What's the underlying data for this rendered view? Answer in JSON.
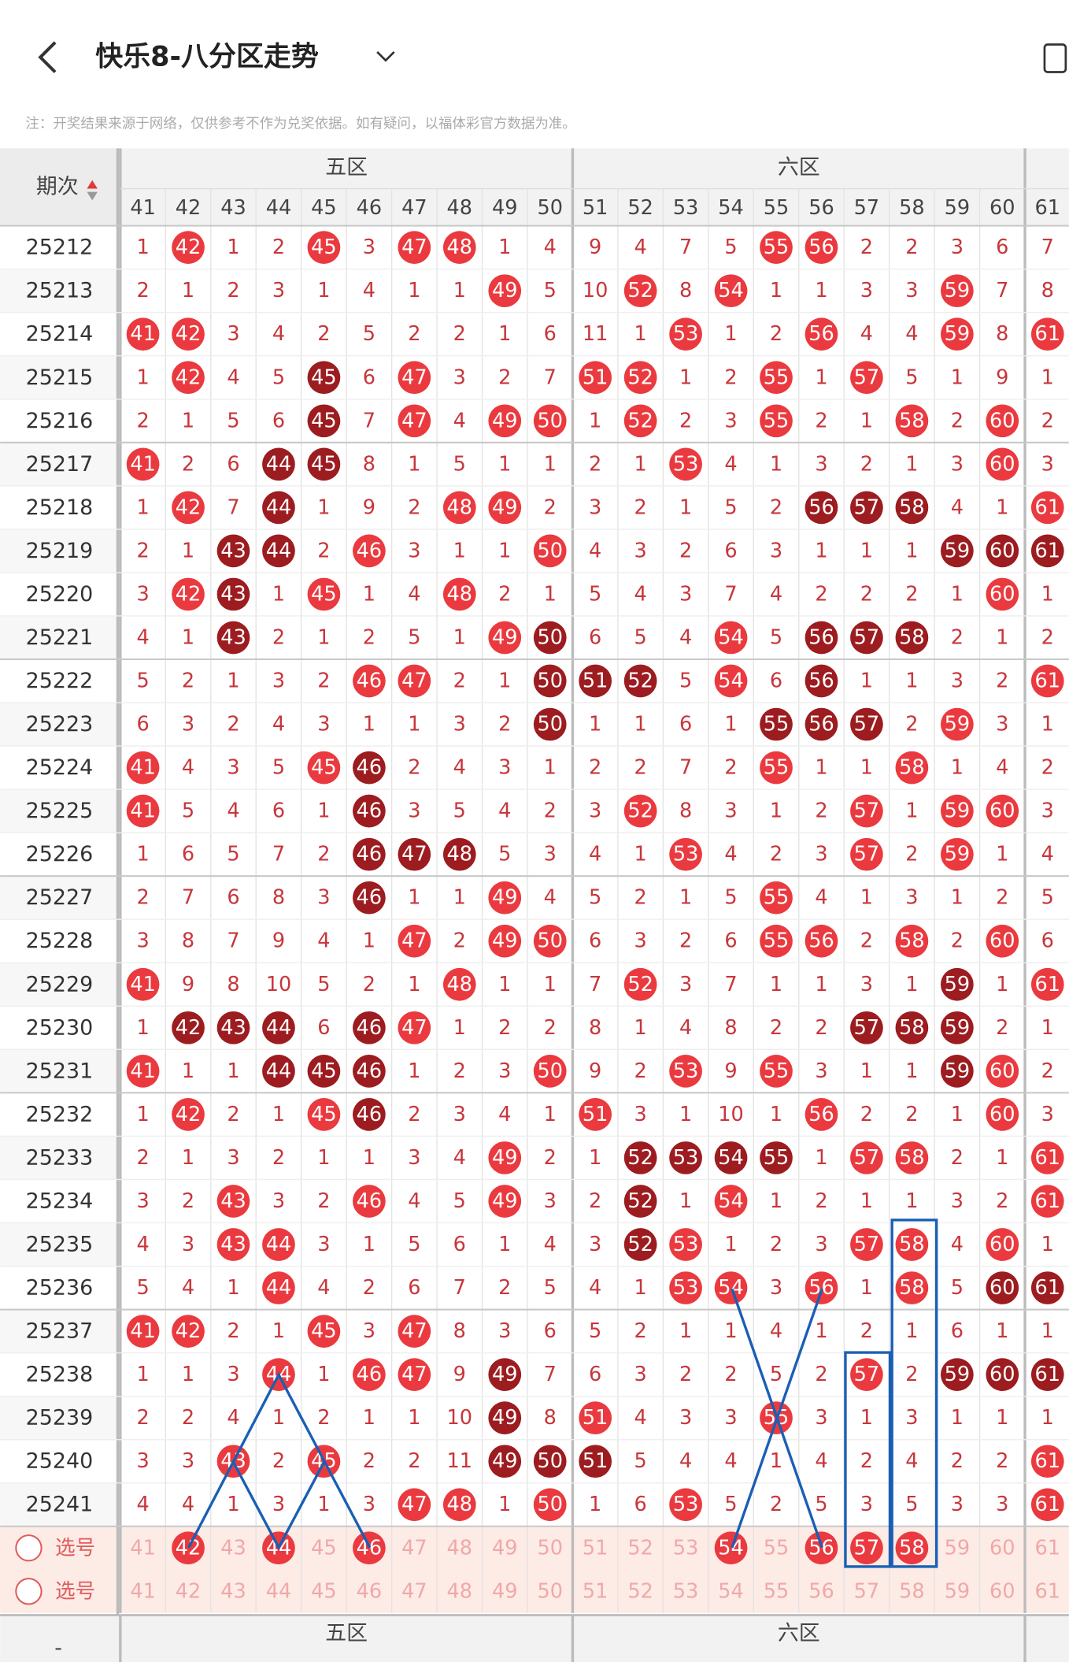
{
  "header": {
    "title": "快乐8-八分区走势",
    "note": "注：开奖结果来源于网络，仅供参考不作为兑奖依据。如有疑问，以福体彩官方数据为准。"
  },
  "table": {
    "issue_header": "期次",
    "zones": [
      "五区",
      "六区"
    ],
    "columns": [
      41,
      42,
      43,
      44,
      45,
      46,
      47,
      48,
      49,
      50,
      51,
      52,
      53,
      54,
      55,
      56,
      57,
      58,
      59,
      60,
      61
    ],
    "rows": [
      {
        "issue": "25212",
        "cells": [
          1,
          42,
          1,
          2,
          45,
          3,
          47,
          48,
          1,
          4,
          9,
          4,
          7,
          5,
          55,
          56,
          2,
          2,
          3,
          6,
          7
        ],
        "style": ".r..r.rr......rr....."
      },
      {
        "issue": "25213",
        "cells": [
          2,
          1,
          2,
          3,
          1,
          4,
          1,
          1,
          49,
          5,
          10,
          52,
          8,
          54,
          1,
          1,
          3,
          3,
          59,
          7,
          8
        ],
        "style": "........r..r.r....r.."
      },
      {
        "issue": "25214",
        "cells": [
          41,
          42,
          3,
          4,
          2,
          5,
          2,
          2,
          1,
          6,
          11,
          1,
          53,
          1,
          2,
          56,
          4,
          4,
          59,
          8,
          61
        ],
        "style": "rr..........r..r..r.r"
      },
      {
        "issue": "25215",
        "cells": [
          1,
          42,
          4,
          5,
          45,
          6,
          47,
          3,
          2,
          7,
          51,
          52,
          1,
          2,
          55,
          1,
          57,
          5,
          1,
          9,
          1
        ],
        "style": ".r..d.r...rr..r.r...."
      },
      {
        "issue": "25216",
        "cells": [
          2,
          1,
          5,
          6,
          45,
          7,
          47,
          4,
          49,
          50,
          1,
          52,
          2,
          3,
          55,
          2,
          1,
          58,
          2,
          60,
          2
        ],
        "style": "....d.r.rr.r..r..r.r."
      },
      {
        "issue": "25217",
        "cells": [
          41,
          2,
          6,
          44,
          45,
          8,
          1,
          5,
          1,
          1,
          2,
          1,
          53,
          4,
          1,
          3,
          2,
          1,
          3,
          60,
          3
        ],
        "style": "r..dd.......r......r."
      },
      {
        "issue": "25218",
        "cells": [
          1,
          42,
          7,
          44,
          1,
          9,
          2,
          48,
          49,
          2,
          3,
          2,
          1,
          5,
          2,
          56,
          57,
          58,
          4,
          1,
          61
        ],
        "style": ".r.d...rr......ddd..r"
      },
      {
        "issue": "25219",
        "cells": [
          2,
          1,
          43,
          44,
          2,
          46,
          3,
          1,
          1,
          50,
          4,
          3,
          2,
          6,
          3,
          1,
          1,
          1,
          59,
          60,
          61
        ],
        "style": "..dd.r...r........ddd"
      },
      {
        "issue": "25220",
        "cells": [
          3,
          42,
          43,
          1,
          45,
          1,
          4,
          48,
          2,
          1,
          5,
          4,
          3,
          7,
          4,
          2,
          2,
          2,
          1,
          60,
          1
        ],
        "style": ".rd.r..r...........r."
      },
      {
        "issue": "25221",
        "cells": [
          4,
          1,
          43,
          2,
          1,
          2,
          5,
          1,
          49,
          50,
          6,
          5,
          4,
          54,
          5,
          56,
          57,
          58,
          2,
          1,
          2
        ],
        "style": "..d.....rd...r.ddd..."
      },
      {
        "issue": "25222",
        "cells": [
          5,
          2,
          1,
          3,
          2,
          46,
          47,
          2,
          1,
          50,
          51,
          52,
          5,
          54,
          6,
          56,
          1,
          1,
          3,
          2,
          61
        ],
        "style": ".....rr..ddd.r.d....r"
      },
      {
        "issue": "25223",
        "cells": [
          6,
          3,
          2,
          4,
          3,
          1,
          1,
          3,
          2,
          50,
          1,
          1,
          6,
          1,
          55,
          56,
          57,
          2,
          59,
          3,
          1
        ],
        "style": ".........d....ddd.r.."
      },
      {
        "issue": "25224",
        "cells": [
          41,
          4,
          3,
          5,
          45,
          46,
          2,
          4,
          3,
          1,
          2,
          2,
          7,
          2,
          55,
          1,
          1,
          58,
          1,
          4,
          2
        ],
        "style": "r...rd........r..r..."
      },
      {
        "issue": "25225",
        "cells": [
          41,
          5,
          4,
          6,
          1,
          46,
          3,
          5,
          4,
          2,
          3,
          52,
          8,
          3,
          1,
          2,
          57,
          1,
          59,
          60,
          3
        ],
        "style": "r....d.....r....r.rr."
      },
      {
        "issue": "25226",
        "cells": [
          1,
          6,
          5,
          7,
          2,
          46,
          47,
          48,
          5,
          3,
          4,
          1,
          53,
          4,
          2,
          3,
          57,
          2,
          59,
          1,
          4
        ],
        "style": ".....ddd....r...r.r.."
      },
      {
        "issue": "25227",
        "cells": [
          2,
          7,
          6,
          8,
          3,
          46,
          1,
          1,
          49,
          4,
          5,
          2,
          1,
          5,
          55,
          4,
          1,
          3,
          1,
          2,
          5
        ],
        "style": ".....d..r.....r......"
      },
      {
        "issue": "25228",
        "cells": [
          3,
          8,
          7,
          9,
          4,
          1,
          47,
          2,
          49,
          50,
          6,
          3,
          2,
          6,
          55,
          56,
          2,
          58,
          2,
          60,
          6
        ],
        "style": "......r.rr....rr.r.r."
      },
      {
        "issue": "25229",
        "cells": [
          41,
          9,
          8,
          10,
          5,
          2,
          1,
          48,
          1,
          1,
          7,
          52,
          3,
          7,
          1,
          1,
          3,
          1,
          59,
          1,
          61
        ],
        "style": "r......r...r......d.r"
      },
      {
        "issue": "25230",
        "cells": [
          1,
          42,
          43,
          44,
          6,
          46,
          47,
          1,
          2,
          2,
          8,
          1,
          4,
          8,
          2,
          2,
          57,
          58,
          59,
          2,
          1
        ],
        "style": ".ddd.dr.........ddd.."
      },
      {
        "issue": "25231",
        "cells": [
          41,
          1,
          1,
          44,
          45,
          46,
          1,
          2,
          3,
          50,
          9,
          2,
          53,
          9,
          55,
          3,
          1,
          1,
          59,
          60,
          2
        ],
        "style": "r..ddd...r..r.r...dr."
      },
      {
        "issue": "25232",
        "cells": [
          1,
          42,
          2,
          1,
          45,
          46,
          2,
          3,
          4,
          1,
          51,
          3,
          1,
          10,
          1,
          56,
          2,
          2,
          1,
          60,
          3
        ],
        "style": ".r..rd....r....r...r."
      },
      {
        "issue": "25233",
        "cells": [
          2,
          1,
          3,
          2,
          1,
          1,
          3,
          4,
          49,
          2,
          1,
          52,
          53,
          54,
          55,
          1,
          57,
          58,
          2,
          1,
          61
        ],
        "style": "........r..dddd.rr..r"
      },
      {
        "issue": "25234",
        "cells": [
          3,
          2,
          43,
          3,
          2,
          46,
          4,
          5,
          49,
          3,
          2,
          52,
          1,
          54,
          1,
          2,
          1,
          1,
          3,
          2,
          61
        ],
        "style": "..r..r..r..d.r......r"
      },
      {
        "issue": "25235",
        "cells": [
          4,
          3,
          43,
          44,
          3,
          1,
          5,
          6,
          1,
          4,
          3,
          52,
          53,
          1,
          2,
          3,
          57,
          58,
          4,
          60,
          1
        ],
        "style": "..rr.......dr...rr.r."
      },
      {
        "issue": "25236",
        "cells": [
          5,
          4,
          1,
          44,
          4,
          2,
          6,
          7,
          2,
          5,
          4,
          1,
          53,
          54,
          3,
          56,
          1,
          58,
          5,
          60,
          61
        ],
        "style": "...r........rr.r.r.dd"
      },
      {
        "issue": "25237",
        "cells": [
          41,
          42,
          2,
          1,
          45,
          3,
          47,
          8,
          3,
          6,
          5,
          2,
          1,
          1,
          4,
          1,
          2,
          1,
          6,
          1,
          1
        ],
        "style": "rr..r.r.............."
      },
      {
        "issue": "25238",
        "cells": [
          1,
          1,
          3,
          44,
          1,
          46,
          47,
          9,
          49,
          7,
          6,
          3,
          2,
          2,
          5,
          2,
          57,
          2,
          59,
          60,
          61
        ],
        "style": "...r.rr.d.......r.ddd"
      },
      {
        "issue": "25239",
        "cells": [
          2,
          2,
          4,
          1,
          2,
          1,
          1,
          10,
          49,
          8,
          51,
          4,
          3,
          3,
          55,
          3,
          1,
          3,
          1,
          1,
          1
        ],
        "style": "........d.r...r......"
      },
      {
        "issue": "25240",
        "cells": [
          3,
          3,
          43,
          2,
          45,
          2,
          2,
          11,
          49,
          50,
          51,
          5,
          4,
          4,
          1,
          4,
          2,
          4,
          2,
          2,
          61
        ],
        "style": "..r.r...ddd.........r"
      },
      {
        "issue": "25241",
        "cells": [
          4,
          4,
          1,
          3,
          1,
          3,
          47,
          48,
          1,
          50,
          1,
          6,
          53,
          5,
          2,
          5,
          3,
          5,
          3,
          3,
          61
        ],
        "style": "......rr.r..r.......r"
      }
    ],
    "select_rows": [
      {
        "label": "选号",
        "style": ".r.r.r.......r.rrr..."
      },
      {
        "label": "选号",
        "style": "....................."
      }
    ],
    "footer_left": "-"
  }
}
